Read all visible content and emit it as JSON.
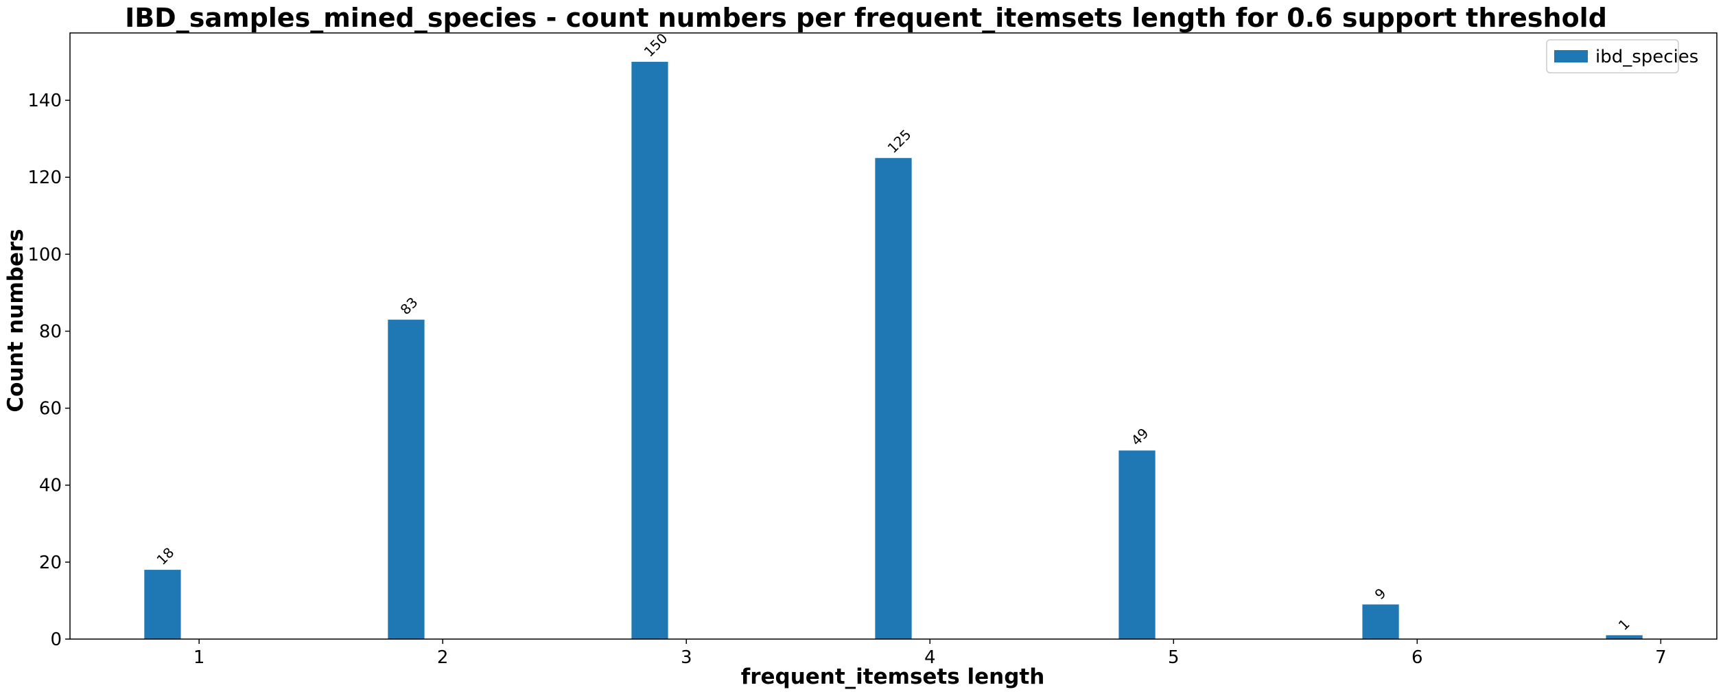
{
  "chart_data": {
    "type": "bar",
    "title": "IBD_samples_mined_species - count numbers per frequent_itemsets length for 0.6 support threshold",
    "xlabel": "frequent_itemsets length",
    "ylabel": "Count numbers",
    "categories": [
      "1",
      "2",
      "3",
      "4",
      "5",
      "6",
      "7"
    ],
    "series": [
      {
        "name": "ibd_species",
        "color": "#1f77b4",
        "values": [
          18,
          83,
          150,
          125,
          49,
          9,
          1
        ]
      }
    ],
    "data_labels": [
      "18",
      "83",
      "150",
      "125",
      "49",
      "9",
      "1"
    ],
    "yticks": [
      "0",
      "20",
      "40",
      "60",
      "80",
      "100",
      "120",
      "140"
    ],
    "ylim": [
      0,
      157.5
    ],
    "xlim": [
      0.47,
      7.23
    ],
    "bar_width": 0.15,
    "bar_offset": -0.15,
    "grid": false,
    "legend_position": "top-right"
  }
}
